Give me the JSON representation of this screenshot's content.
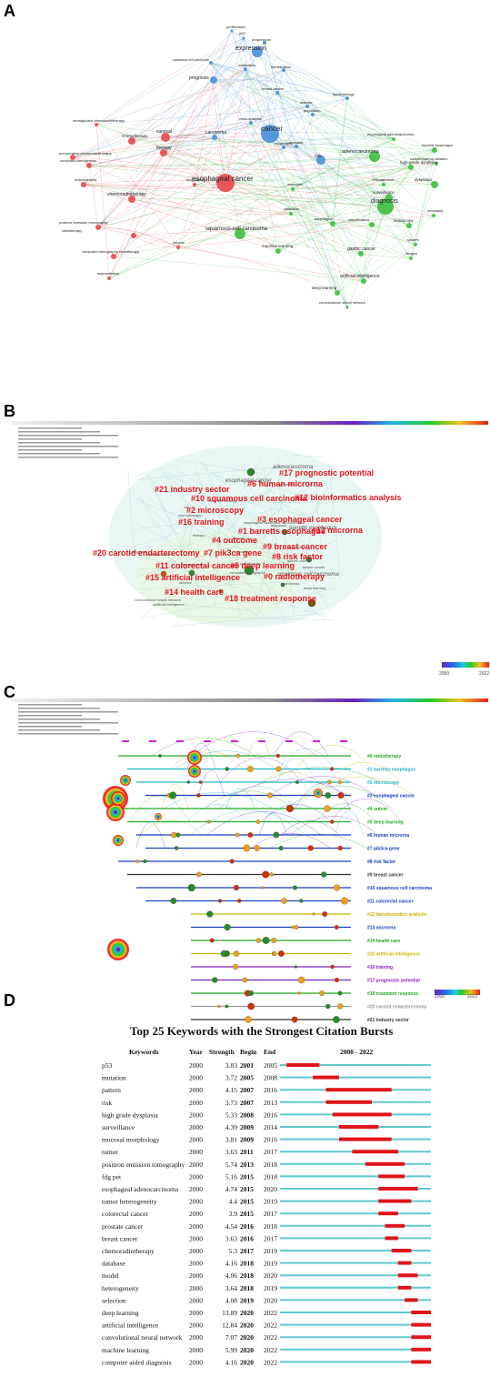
{
  "panels": {
    "a": "A",
    "b": "B",
    "c": "C",
    "d": "D"
  },
  "colors": {
    "red": "#e8474c",
    "green": "#3fbf3f",
    "blue": "#4a8fd6",
    "burst": "#e0141a",
    "base": "#5fc8d0",
    "cluster": "#e8141c"
  },
  "chart_data": [
    {
      "type": "network",
      "panel": "A",
      "nodes": [
        {
          "label": "proliferation",
          "cluster": "blue"
        },
        {
          "label": "p53",
          "cluster": "blue"
        },
        {
          "label": "progression",
          "cluster": "blue"
        },
        {
          "label": "expression",
          "cluster": "blue"
        },
        {
          "label": "squamous-cell carcinoma",
          "cluster": "blue"
        },
        {
          "label": "metastasis",
          "cluster": "blue"
        },
        {
          "label": "identification",
          "cluster": "blue"
        },
        {
          "label": "prognosis",
          "cluster": "blue"
        },
        {
          "label": "breast cancer",
          "cluster": "blue"
        },
        {
          "label": "epidemiology",
          "cluster": "blue"
        },
        {
          "label": "disease",
          "cluster": "blue"
        },
        {
          "label": "population",
          "cluster": "blue"
        },
        {
          "label": "meta-analysis",
          "cluster": "blue"
        },
        {
          "label": "cancer",
          "cluster": "blue"
        },
        {
          "label": "carcinoma",
          "cluster": "blue"
        },
        {
          "label": "mortality",
          "cluster": "blue"
        },
        {
          "label": "risk",
          "cluster": "blue"
        },
        {
          "label": "esophagitis",
          "cluster": "blue"
        },
        {
          "label": "neoadjuvant chemoradiotherapy",
          "cluster": "red"
        },
        {
          "label": "survival",
          "cluster": "red"
        },
        {
          "label": "chemotherapy",
          "cluster": "red"
        },
        {
          "label": "preoperative chemoradiotherapy",
          "cluster": "red"
        },
        {
          "label": "computed-tomography",
          "cluster": "red"
        },
        {
          "label": "therapy",
          "cluster": "red"
        },
        {
          "label": "esophageal cancer",
          "cluster": "red"
        },
        {
          "label": "heterogeneity",
          "cluster": "red"
        },
        {
          "label": "chemoradiotherapy",
          "cluster": "red"
        },
        {
          "label": "positron-emission tomography",
          "cluster": "red"
        },
        {
          "label": "radiotherapy",
          "cluster": "red"
        },
        {
          "label": "computed tomography radiotherapy",
          "cluster": "red"
        },
        {
          "label": "segmentation",
          "cluster": "red"
        },
        {
          "label": "volume",
          "cluster": "red"
        },
        {
          "label": "lung cancer",
          "cluster": "red"
        },
        {
          "label": "adenocarcinoma",
          "cluster": "green"
        },
        {
          "label": "esophageal adenocarcinoma",
          "cluster": "green"
        },
        {
          "label": "barretts esophagus",
          "cluster": "green"
        },
        {
          "label": "radiofrequency ablation",
          "cluster": "green"
        },
        {
          "label": "high-grade dysplasia",
          "cluster": "green"
        },
        {
          "label": "dysplasia",
          "cluster": "green"
        },
        {
          "label": "management",
          "cluster": "green"
        },
        {
          "label": "surveillance",
          "cluster": "green"
        },
        {
          "label": "diagnosis",
          "cluster": "green"
        },
        {
          "label": "neoplasia",
          "cluster": "green"
        },
        {
          "label": "endoscopy",
          "cluster": "green"
        },
        {
          "label": "system",
          "cluster": "green"
        },
        {
          "label": "classification",
          "cluster": "green"
        },
        {
          "label": "esophagus",
          "cluster": "green"
        },
        {
          "label": "squamous-cell carcinoma",
          "cluster": "green"
        },
        {
          "label": "machine learning",
          "cluster": "green"
        },
        {
          "label": "gastric cancer",
          "cluster": "green"
        },
        {
          "label": "artificial intelligence",
          "cluster": "green"
        },
        {
          "label": "deep learning",
          "cluster": "green"
        },
        {
          "label": "convolutional neural network",
          "cluster": "green"
        },
        {
          "label": "outcomes",
          "cluster": "green"
        },
        {
          "label": "validation",
          "cluster": "green"
        },
        {
          "label": "images",
          "cluster": "green"
        }
      ]
    },
    {
      "type": "cluster-network",
      "panel": "B",
      "clusters": [
        {
          "label": "#17 prognostic potential"
        },
        {
          "label": "#21 industry sector"
        },
        {
          "label": "#6 human microrna"
        },
        {
          "label": "#10 squamous cell carcinoma"
        },
        {
          "label": "#12 bioinformatics analysis"
        },
        {
          "label": "#2 microscopy"
        },
        {
          "label": "#3 esophageal cancer"
        },
        {
          "label": "#16 training"
        },
        {
          "label": "#1 barretts esophagus"
        },
        {
          "label": "#13 microrna"
        },
        {
          "label": "#4 outcome"
        },
        {
          "label": "#9 breast cancer"
        },
        {
          "label": "#20 carotid endarterectomy"
        },
        {
          "label": "#7 pik3ca gene"
        },
        {
          "label": "#8 risk factor"
        },
        {
          "label": "#11 colorectal cancer"
        },
        {
          "label": "#5 deep learning"
        },
        {
          "label": "#0 radiotherapy"
        },
        {
          "label": "#15 artificial intelligence"
        },
        {
          "label": "#14 health care"
        },
        {
          "label": "#18 treatment response"
        }
      ],
      "keywords": [
        "adenocarcinoma",
        "esophageal cancer",
        "expression",
        "machine learning",
        "risk",
        "chemotherapy",
        "esophageal squamous cell carcinoma",
        "dysplasia",
        "barretts esophagus",
        "therapy",
        "cancer",
        "outcome",
        "lung cancer",
        "diagnosis",
        "colorectal cancer",
        "gastric cancer",
        "management",
        "breast cancer",
        "classification",
        "squamous cell carcinoma",
        "computed tomography",
        "carcinoma",
        "deep learning",
        "survival",
        "convolutional neural network",
        "artificial intelligence"
      ],
      "color_scale": {
        "start": "2000",
        "end": "2022"
      }
    },
    {
      "type": "timeline",
      "panel": "C",
      "clusters": [
        {
          "label": "#0 radiotherapy",
          "color": "#22aa22"
        },
        {
          "label": "#1 barretts esophagus",
          "color": "#1fb5c4"
        },
        {
          "label": "#2 microscopy",
          "color": "#1fb5c4"
        },
        {
          "label": "#3 esophageal cancer",
          "color": "#1a3fbf"
        },
        {
          "label": "#4 outcm",
          "color": "#22aa22"
        },
        {
          "label": "#5 deep learning",
          "color": "#22aa22"
        },
        {
          "label": "#6 human microrna",
          "color": "#1a3fbf"
        },
        {
          "label": "#7 pik3ca gene",
          "color": "#1a3fbf"
        },
        {
          "label": "#8 risk factor",
          "color": "#1a3fbf"
        },
        {
          "label": "#9 breast cancer",
          "color": "#333333"
        },
        {
          "label": "#10 squamous cell carcinoma",
          "color": "#1a3fbf"
        },
        {
          "label": "#11 colorectal cancer",
          "color": "#1a3fbf"
        },
        {
          "label": "#12 bioinformatics analysis",
          "color": "#c8b400"
        },
        {
          "label": "#13 microrna",
          "color": "#1a3fbf"
        },
        {
          "label": "#14 health care",
          "color": "#22aa22"
        },
        {
          "label": "#15 artificial intelligence",
          "color": "#c8b400"
        },
        {
          "label": "#16 training",
          "color": "#8a1fbf"
        },
        {
          "label": "#17 prognostic potential",
          "color": "#8a1fbf"
        },
        {
          "label": "#18 treatment response",
          "color": "#22aa22"
        },
        {
          "label": "#20 carotid endarterectomy",
          "color": "#999999"
        },
        {
          "label": "#21 industry sector",
          "color": "#333333"
        }
      ],
      "color_scale": {
        "start": "2000",
        "end": "2022"
      }
    },
    {
      "type": "burst",
      "panel": "D",
      "title": "Top 25 Keywords with the Strongest Citation Bursts",
      "headers": {
        "keyword": "Keywords",
        "year": "Year",
        "strength": "Strength",
        "begin": "Begin",
        "end": "End",
        "range": "2000 - 2022"
      },
      "range_start": 2000,
      "range_end": 2022,
      "rows": [
        {
          "keyword": "p53",
          "year": "2000",
          "strength": "3.83",
          "begin": 2001,
          "end": 2005
        },
        {
          "keyword": "mutation",
          "year": "2000",
          "strength": "3.72",
          "begin": 2005,
          "end": 2008
        },
        {
          "keyword": "pattern",
          "year": "2000",
          "strength": "4.15",
          "begin": 2007,
          "end": 2016
        },
        {
          "keyword": "risk",
          "year": "2000",
          "strength": "3.73",
          "begin": 2007,
          "end": 2013
        },
        {
          "keyword": "high grade dysplasia",
          "year": "2000",
          "strength": "5.33",
          "begin": 2008,
          "end": 2016
        },
        {
          "keyword": "surveillance",
          "year": "2000",
          "strength": "4.39",
          "begin": 2009,
          "end": 2014
        },
        {
          "keyword": "mucosal morphology",
          "year": "2000",
          "strength": "3.81",
          "begin": 2009,
          "end": 2016
        },
        {
          "keyword": "tumor",
          "year": "2000",
          "strength": "3.63",
          "begin": 2011,
          "end": 2017
        },
        {
          "keyword": "positron emission tomography",
          "year": "2000",
          "strength": "5.74",
          "begin": 2013,
          "end": 2018
        },
        {
          "keyword": "fdg pet",
          "year": "2000",
          "strength": "5.16",
          "begin": 2015,
          "end": 2018
        },
        {
          "keyword": "esophageal adenocarcinoma",
          "year": "2000",
          "strength": "4.74",
          "begin": 2015,
          "end": 2020
        },
        {
          "keyword": "tumor heterogeneity",
          "year": "2000",
          "strength": "4.4",
          "begin": 2015,
          "end": 2019
        },
        {
          "keyword": "colorectal cancer",
          "year": "2000",
          "strength": "3.9",
          "begin": 2015,
          "end": 2017
        },
        {
          "keyword": "prostate cancer",
          "year": "2000",
          "strength": "4.54",
          "begin": 2016,
          "end": 2018
        },
        {
          "keyword": "breast cancer",
          "year": "2000",
          "strength": "3.63",
          "begin": 2016,
          "end": 2017
        },
        {
          "keyword": "chemoradiotherapy",
          "year": "2000",
          "strength": "5.3",
          "begin": 2017,
          "end": 2019
        },
        {
          "keyword": "database",
          "year": "2000",
          "strength": "4.16",
          "begin": 2018,
          "end": 2019
        },
        {
          "keyword": "model",
          "year": "2000",
          "strength": "4.06",
          "begin": 2018,
          "end": 2020
        },
        {
          "keyword": "heterogeneity",
          "year": "2000",
          "strength": "3.64",
          "begin": 2018,
          "end": 2019
        },
        {
          "keyword": "selection",
          "year": "2000",
          "strength": "4.08",
          "begin": 2019,
          "end": 2020
        },
        {
          "keyword": "deep learning",
          "year": "2000",
          "strength": "13.89",
          "begin": 2020,
          "end": 2022
        },
        {
          "keyword": "artificial intelligence",
          "year": "2000",
          "strength": "12.84",
          "begin": 2020,
          "end": 2022
        },
        {
          "keyword": "convolutional neural network",
          "year": "2000",
          "strength": "7.07",
          "begin": 2020,
          "end": 2022
        },
        {
          "keyword": "machine learning",
          "year": "2000",
          "strength": "5.99",
          "begin": 2020,
          "end": 2022
        },
        {
          "keyword": "computer aided diagnosis",
          "year": "2000",
          "strength": "4.16",
          "begin": 2020,
          "end": 2022
        }
      ]
    }
  ]
}
